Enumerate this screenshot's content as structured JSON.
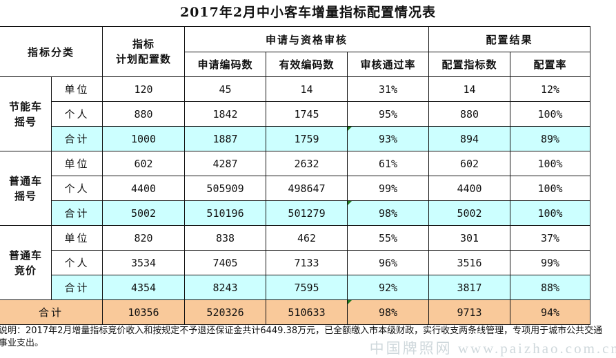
{
  "title": "2017年2月中小客车增量指标配置情况表",
  "header": {
    "category": "指标分类",
    "plan_line1": "指标",
    "plan_line2": "计划配置数",
    "group_apply": "申请与资格审核",
    "group_result": "配置结果",
    "apply_codes": "申请编码数",
    "valid_codes": "有效编码数",
    "pass_rate": "审核通过率",
    "alloc_count": "配置指标数",
    "alloc_rate": "配置率"
  },
  "groups": [
    {
      "label_line1": "节能车",
      "label_line2": "摇号",
      "rows": [
        {
          "label": "单位",
          "plan": "120",
          "apply": "45",
          "valid": "14",
          "pass": "31%",
          "alloc": "14",
          "rate": "12%"
        },
        {
          "label": "个人",
          "plan": "880",
          "apply": "1842",
          "valid": "1745",
          "pass": "95%",
          "alloc": "880",
          "rate": "100%"
        },
        {
          "label": "合计",
          "plan": "1000",
          "apply": "1887",
          "valid": "1759",
          "pass": "93%",
          "alloc": "894",
          "rate": "89%"
        }
      ]
    },
    {
      "label_line1": "普通车",
      "label_line2": "摇号",
      "rows": [
        {
          "label": "单位",
          "plan": "602",
          "apply": "4287",
          "valid": "2632",
          "pass": "61%",
          "alloc": "602",
          "rate": "100%"
        },
        {
          "label": "个人",
          "plan": "4400",
          "apply": "505909",
          "valid": "498647",
          "pass": "99%",
          "alloc": "4400",
          "rate": "100%"
        },
        {
          "label": "合计",
          "plan": "5002",
          "apply": "510196",
          "valid": "501279",
          "pass": "98%",
          "alloc": "5002",
          "rate": "100%"
        }
      ]
    },
    {
      "label_line1": "普通车",
      "label_line2": "竞价",
      "rows": [
        {
          "label": "单位",
          "plan": "820",
          "apply": "838",
          "valid": "462",
          "pass": "55%",
          "alloc": "301",
          "rate": "37%"
        },
        {
          "label": "个人",
          "plan": "3534",
          "apply": "7405",
          "valid": "7133",
          "pass": "96%",
          "alloc": "3516",
          "rate": "99%"
        },
        {
          "label": "合计",
          "plan": "4354",
          "apply": "8243",
          "valid": "7595",
          "pass": "92%",
          "alloc": "3817",
          "rate": "88%"
        }
      ]
    }
  ],
  "grand_total": {
    "label": "合计",
    "plan": "10356",
    "apply": "520326",
    "valid": "510633",
    "pass": "98%",
    "alloc": "9713",
    "rate": "94%"
  },
  "note": "说明：2017年2月增量指标竞价收入和按规定不予退还保证金共计6449.38万元，已全额缴入市本级财政，实行收支两条线管理，专项用于城市公共交通事业支出。",
  "watermark": "中国牌照网 www.paizhao.com.cn",
  "colors": {
    "total_row": "#ccffff",
    "grand_total_row": "#f9c99a"
  }
}
